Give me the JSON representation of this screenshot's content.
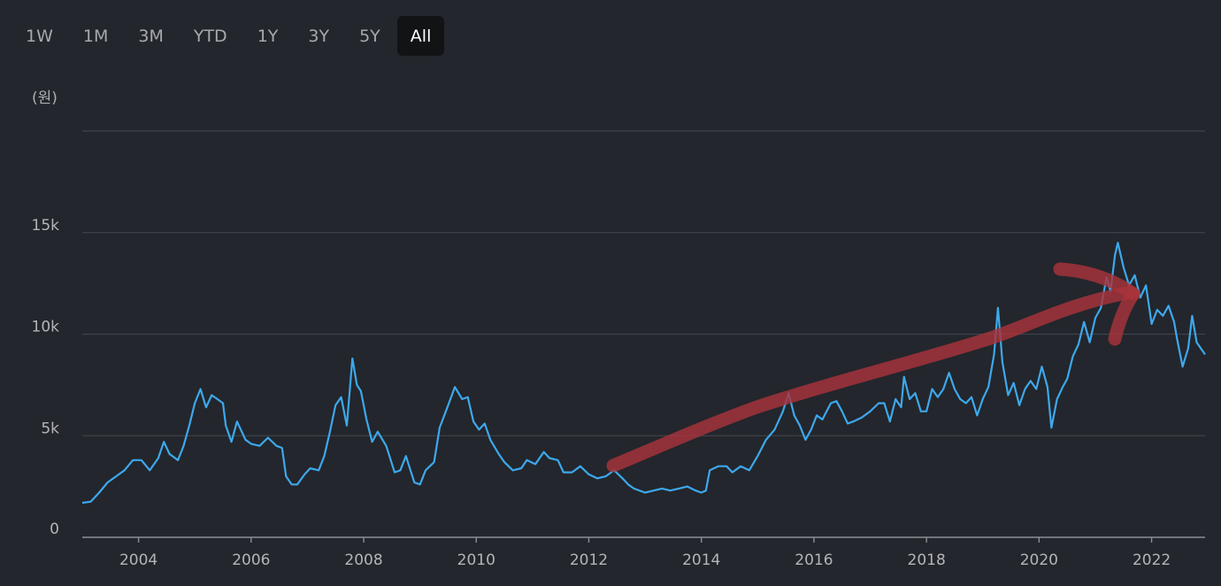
{
  "range_tabs": [
    {
      "label": "1W",
      "active": false
    },
    {
      "label": "1M",
      "active": false
    },
    {
      "label": "3M",
      "active": false
    },
    {
      "label": "YTD",
      "active": false
    },
    {
      "label": "1Y",
      "active": false
    },
    {
      "label": "3Y",
      "active": false
    },
    {
      "label": "5Y",
      "active": false
    },
    {
      "label": "All",
      "active": true
    }
  ],
  "unit_label": "(원)",
  "colors": {
    "background": "#23262c",
    "line": "#3da8ec",
    "annotation": "#a8333b",
    "active_tab": "#121315"
  },
  "chart_data": {
    "type": "line",
    "title": "",
    "xlabel": "",
    "ylabel": "(원)",
    "xlim": [
      2003.0,
      2022.95
    ],
    "ylim": [
      0,
      20000
    ],
    "grid": true,
    "y_ticks": [
      {
        "value": 0,
        "label": "0"
      },
      {
        "value": 5000,
        "label": "5k"
      },
      {
        "value": 10000,
        "label": "10k"
      },
      {
        "value": 15000,
        "label": "15k"
      },
      {
        "value": 20000,
        "label": ""
      }
    ],
    "x_ticks": [
      {
        "value": 2004,
        "label": "2004"
      },
      {
        "value": 2006,
        "label": "2006"
      },
      {
        "value": 2008,
        "label": "2008"
      },
      {
        "value": 2010,
        "label": "2010"
      },
      {
        "value": 2012,
        "label": "2012"
      },
      {
        "value": 2014,
        "label": "2014"
      },
      {
        "value": 2016,
        "label": "2016"
      },
      {
        "value": 2018,
        "label": "2018"
      },
      {
        "value": 2020,
        "label": "2020"
      },
      {
        "value": 2022,
        "label": "2022"
      }
    ],
    "series": [
      {
        "points": [
          [
            2003.0,
            1700
          ],
          [
            2003.15,
            1750
          ],
          [
            2003.3,
            2200
          ],
          [
            2003.45,
            2700
          ],
          [
            2003.6,
            3000
          ],
          [
            2003.75,
            3300
          ],
          [
            2003.9,
            3800
          ],
          [
            2004.05,
            3800
          ],
          [
            2004.2,
            3300
          ],
          [
            2004.35,
            3900
          ],
          [
            2004.45,
            4700
          ],
          [
            2004.55,
            4100
          ],
          [
            2004.7,
            3800
          ],
          [
            2004.8,
            4500
          ],
          [
            2004.9,
            5500
          ],
          [
            2005.0,
            6600
          ],
          [
            2005.1,
            7300
          ],
          [
            2005.2,
            6400
          ],
          [
            2005.3,
            7000
          ],
          [
            2005.4,
            6800
          ],
          [
            2005.5,
            6600
          ],
          [
            2005.55,
            5500
          ],
          [
            2005.65,
            4700
          ],
          [
            2005.75,
            5700
          ],
          [
            2005.9,
            4800
          ],
          [
            2006.0,
            4600
          ],
          [
            2006.15,
            4500
          ],
          [
            2006.3,
            4900
          ],
          [
            2006.45,
            4500
          ],
          [
            2006.55,
            4400
          ],
          [
            2006.62,
            3000
          ],
          [
            2006.72,
            2600
          ],
          [
            2006.82,
            2600
          ],
          [
            2006.95,
            3100
          ],
          [
            2007.05,
            3400
          ],
          [
            2007.2,
            3300
          ],
          [
            2007.3,
            4000
          ],
          [
            2007.4,
            5200
          ],
          [
            2007.5,
            6500
          ],
          [
            2007.6,
            6900
          ],
          [
            2007.7,
            5500
          ],
          [
            2007.8,
            8800
          ],
          [
            2007.88,
            7500
          ],
          [
            2007.95,
            7200
          ],
          [
            2008.05,
            5800
          ],
          [
            2008.15,
            4700
          ],
          [
            2008.25,
            5200
          ],
          [
            2008.4,
            4500
          ],
          [
            2008.55,
            3200
          ],
          [
            2008.65,
            3300
          ],
          [
            2008.75,
            4000
          ],
          [
            2008.9,
            2700
          ],
          [
            2009.0,
            2600
          ],
          [
            2009.1,
            3300
          ],
          [
            2009.25,
            3700
          ],
          [
            2009.35,
            5400
          ],
          [
            2009.5,
            6500
          ],
          [
            2009.62,
            7400
          ],
          [
            2009.75,
            6800
          ],
          [
            2009.85,
            6900
          ],
          [
            2009.95,
            5700
          ],
          [
            2010.05,
            5300
          ],
          [
            2010.15,
            5600
          ],
          [
            2010.25,
            4800
          ],
          [
            2010.4,
            4100
          ],
          [
            2010.5,
            3700
          ],
          [
            2010.65,
            3300
          ],
          [
            2010.8,
            3400
          ],
          [
            2010.9,
            3800
          ],
          [
            2011.05,
            3600
          ],
          [
            2011.2,
            4200
          ],
          [
            2011.3,
            3900
          ],
          [
            2011.45,
            3800
          ],
          [
            2011.55,
            3200
          ],
          [
            2011.7,
            3200
          ],
          [
            2011.85,
            3500
          ],
          [
            2012.0,
            3100
          ],
          [
            2012.15,
            2900
          ],
          [
            2012.3,
            3000
          ],
          [
            2012.45,
            3300
          ],
          [
            2012.6,
            2900
          ],
          [
            2012.7,
            2600
          ],
          [
            2012.8,
            2400
          ],
          [
            2012.9,
            2300
          ],
          [
            2013.0,
            2200
          ],
          [
            2013.15,
            2300
          ],
          [
            2013.3,
            2400
          ],
          [
            2013.45,
            2300
          ],
          [
            2013.6,
            2400
          ],
          [
            2013.75,
            2500
          ],
          [
            2013.9,
            2300
          ],
          [
            2014.0,
            2200
          ],
          [
            2014.08,
            2300
          ],
          [
            2014.15,
            3300
          ],
          [
            2014.3,
            3500
          ],
          [
            2014.45,
            3500
          ],
          [
            2014.55,
            3200
          ],
          [
            2014.7,
            3500
          ],
          [
            2014.85,
            3300
          ],
          [
            2015.0,
            4000
          ],
          [
            2015.15,
            4800
          ],
          [
            2015.3,
            5300
          ],
          [
            2015.45,
            6200
          ],
          [
            2015.55,
            7100
          ],
          [
            2015.65,
            6000
          ],
          [
            2015.75,
            5500
          ],
          [
            2015.85,
            4800
          ],
          [
            2015.95,
            5300
          ],
          [
            2016.05,
            6000
          ],
          [
            2016.15,
            5800
          ],
          [
            2016.3,
            6600
          ],
          [
            2016.4,
            6700
          ],
          [
            2016.5,
            6200
          ],
          [
            2016.6,
            5600
          ],
          [
            2016.7,
            5700
          ],
          [
            2016.85,
            5900
          ],
          [
            2017.0,
            6200
          ],
          [
            2017.15,
            6600
          ],
          [
            2017.25,
            6600
          ],
          [
            2017.35,
            5700
          ],
          [
            2017.45,
            6800
          ],
          [
            2017.55,
            6400
          ],
          [
            2017.6,
            7900
          ],
          [
            2017.7,
            6800
          ],
          [
            2017.8,
            7100
          ],
          [
            2017.9,
            6200
          ],
          [
            2018.0,
            6200
          ],
          [
            2018.1,
            7300
          ],
          [
            2018.2,
            6900
          ],
          [
            2018.3,
            7300
          ],
          [
            2018.4,
            8100
          ],
          [
            2018.5,
            7300
          ],
          [
            2018.6,
            6800
          ],
          [
            2018.7,
            6600
          ],
          [
            2018.8,
            6900
          ],
          [
            2018.9,
            6000
          ],
          [
            2019.0,
            6800
          ],
          [
            2019.1,
            7400
          ],
          [
            2019.2,
            9000
          ],
          [
            2019.27,
            11300
          ],
          [
            2019.35,
            8600
          ],
          [
            2019.45,
            7000
          ],
          [
            2019.55,
            7600
          ],
          [
            2019.65,
            6500
          ],
          [
            2019.75,
            7300
          ],
          [
            2019.85,
            7700
          ],
          [
            2019.95,
            7300
          ],
          [
            2020.05,
            8400
          ],
          [
            2020.15,
            7400
          ],
          [
            2020.22,
            5400
          ],
          [
            2020.32,
            6800
          ],
          [
            2020.42,
            7400
          ],
          [
            2020.5,
            7800
          ],
          [
            2020.6,
            8900
          ],
          [
            2020.7,
            9500
          ],
          [
            2020.8,
            10600
          ],
          [
            2020.9,
            9600
          ],
          [
            2021.0,
            10800
          ],
          [
            2021.1,
            11300
          ],
          [
            2021.2,
            12800
          ],
          [
            2021.27,
            12100
          ],
          [
            2021.35,
            13900
          ],
          [
            2021.4,
            14500
          ],
          [
            2021.5,
            13300
          ],
          [
            2021.6,
            12400
          ],
          [
            2021.7,
            12900
          ],
          [
            2021.8,
            11800
          ],
          [
            2021.9,
            12400
          ],
          [
            2022.0,
            10500
          ],
          [
            2022.1,
            11200
          ],
          [
            2022.2,
            10900
          ],
          [
            2022.3,
            11400
          ],
          [
            2022.4,
            10600
          ],
          [
            2022.45,
            9800
          ],
          [
            2022.55,
            8400
          ],
          [
            2022.65,
            9300
          ],
          [
            2022.72,
            10900
          ],
          [
            2022.8,
            9600
          ],
          [
            2022.9,
            9200
          ],
          [
            2022.95,
            9000
          ]
        ]
      }
    ]
  }
}
